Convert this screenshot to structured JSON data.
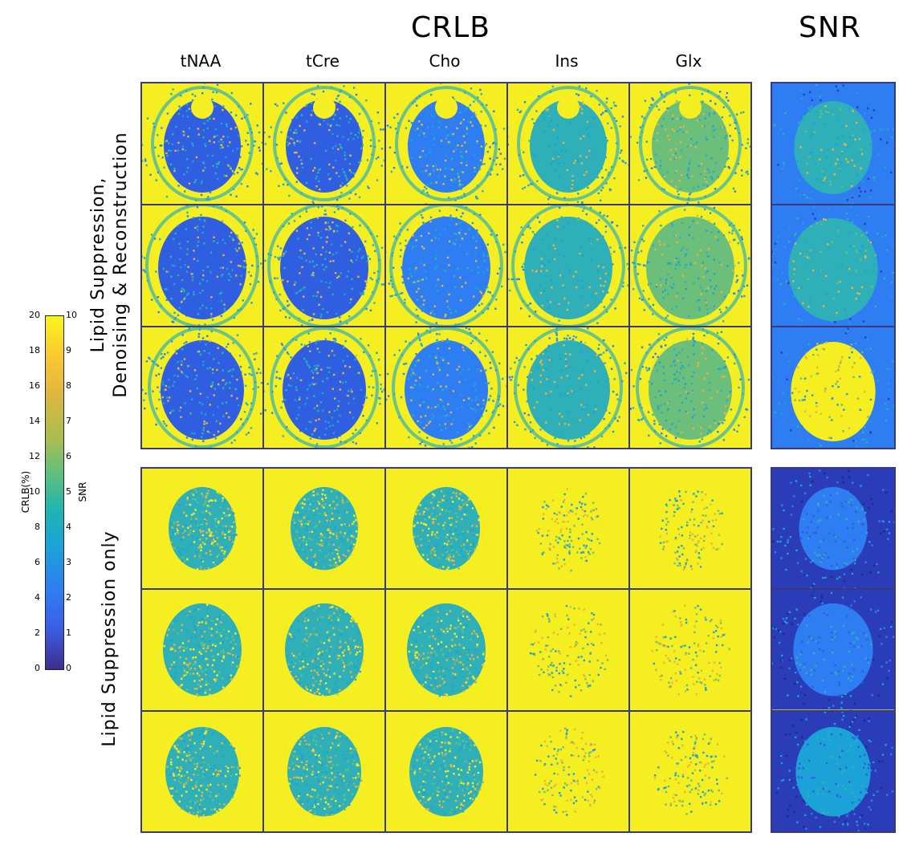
{
  "titles": {
    "crlb": "CRLB",
    "snr": "SNR"
  },
  "columns": [
    "tNAA",
    "tCre",
    "Cho",
    "Ins",
    "Glx"
  ],
  "row_groups": {
    "top": {
      "line1": "Lipid Suppression,",
      "line2": "Denoising & Reconstruction"
    },
    "bottom": {
      "line1": "Lipid Suppression only"
    }
  },
  "colorbar": {
    "left_label": "CRLB(%)",
    "right_label": "SNR",
    "left_ticks": [
      "20",
      "18",
      "16",
      "14",
      "12",
      "10",
      "8",
      "6",
      "4",
      "2",
      "0"
    ],
    "right_ticks": [
      "10",
      "9",
      "8",
      "7",
      "6",
      "5",
      "4",
      "3",
      "2",
      "1",
      "0"
    ]
  },
  "colors": {
    "yellow": "#f5ee20",
    "blue_dark": "#2f5ee0",
    "blue": "#2f7df2",
    "cyan": "#1ba3d8",
    "teal": "#2fb0b8",
    "green": "#6cbf7a",
    "orange": "#e8b440",
    "navy": "#2a3cb8",
    "frame": "#3a3a7a"
  }
}
